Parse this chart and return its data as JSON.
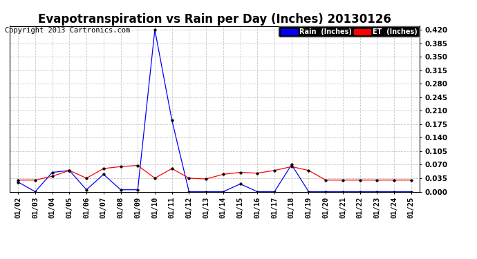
{
  "title": "Evapotranspiration vs Rain per Day (Inches) 20130126",
  "copyright": "Copyright 2013 Cartronics.com",
  "x_labels": [
    "01/02",
    "01/03",
    "01/04",
    "01/05",
    "01/06",
    "01/07",
    "01/08",
    "01/09",
    "01/10",
    "01/11",
    "01/12",
    "01/13",
    "01/14",
    "01/15",
    "01/16",
    "01/17",
    "01/18",
    "01/19",
    "01/20",
    "01/21",
    "01/22",
    "01/23",
    "01/24",
    "01/25"
  ],
  "rain_data": [
    0.025,
    0.0,
    0.05,
    0.055,
    0.005,
    0.045,
    0.005,
    0.005,
    0.42,
    0.185,
    0.0,
    0.0,
    0.0,
    0.02,
    0.0,
    0.0,
    0.07,
    0.0,
    0.0,
    0.0,
    0.0,
    0.0,
    0.0,
    0.0
  ],
  "et_data": [
    0.03,
    0.03,
    0.04,
    0.055,
    0.035,
    0.06,
    0.065,
    0.068,
    0.035,
    0.06,
    0.035,
    0.033,
    0.045,
    0.05,
    0.048,
    0.055,
    0.065,
    0.055,
    0.03,
    0.03,
    0.03,
    0.03,
    0.03,
    0.03
  ],
  "rain_color": "#0000ff",
  "et_color": "#ff0000",
  "bg_color": "#ffffff",
  "grid_color": "#c8c8c8",
  "ylim_min": 0.0,
  "ylim_max": 0.43,
  "yticks": [
    0.0,
    0.035,
    0.07,
    0.105,
    0.14,
    0.175,
    0.21,
    0.245,
    0.28,
    0.315,
    0.35,
    0.385,
    0.42
  ],
  "legend_rain_label": "Rain  (Inches)",
  "legend_et_label": "ET  (Inches)",
  "legend_rain_bg": "#0000ff",
  "legend_et_bg": "#ff0000",
  "legend_text_color": "#ffffff",
  "title_fontsize": 12,
  "copyright_fontsize": 7.5,
  "tick_fontsize": 7.5,
  "marker": "o",
  "marker_size": 2.5,
  "marker_color": "#000000",
  "line_width": 0.9
}
